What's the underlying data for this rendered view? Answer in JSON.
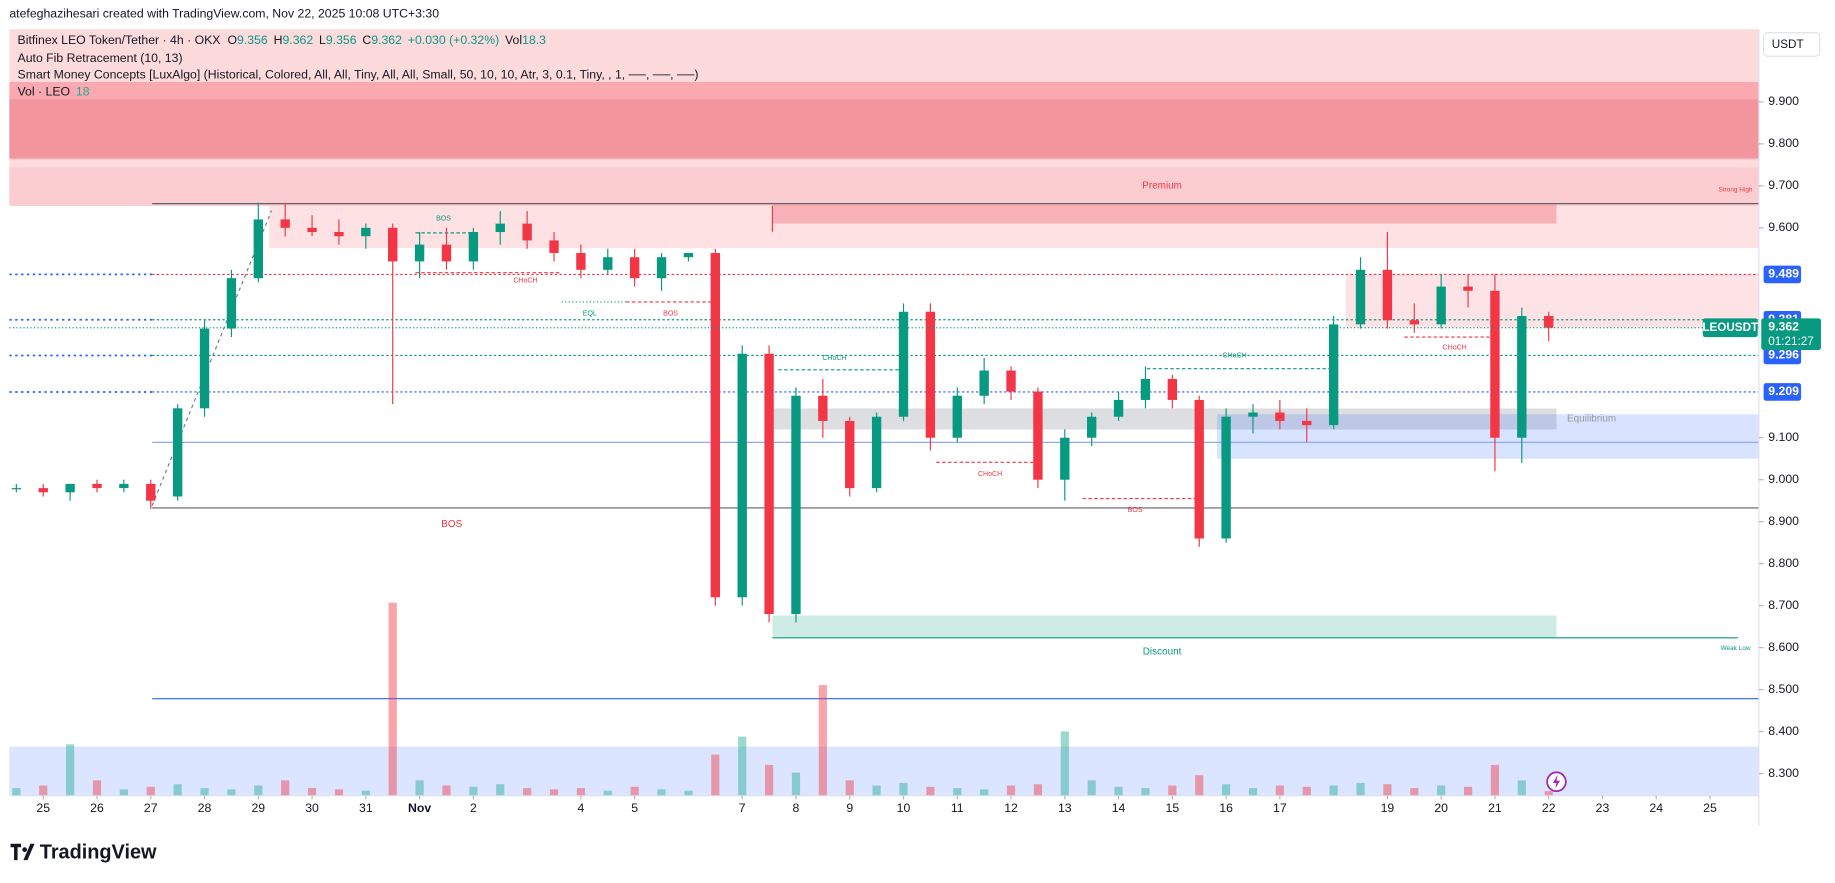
{
  "chart_data": {
    "type": "candlestick",
    "watermark": "atefeghazihesari created with TradingView.com, Nov 22, 2025 10:08 UTC+3:30",
    "legend": {
      "title": "Bitfinex LEO Token/Tether · 4h · OKX",
      "ohlc": [
        {
          "key": "O",
          "value": 9.356
        },
        {
          "key": "H",
          "value": 9.362
        },
        {
          "key": "L",
          "value": 9.356
        },
        {
          "key": "C",
          "value": 9.362
        }
      ],
      "change": "+0.030 (+0.32%)",
      "volume_key": "Vol",
      "volume": 18.3
    },
    "indicators": [
      "Auto Fib Retracement (10, 13)",
      "Smart Money Concepts [LuxAlgo] (Historical, Colored, All, All, Tiny, All, All, Small, 50, 10, 10, Atr, 3, 0.1, Tiny, , 1, ──, ──, ──)"
    ],
    "volume_legend": {
      "label": "Vol · LEO",
      "value": 18
    },
    "currency": "USDT",
    "brand": "TradingView",
    "up_color": "#089981",
    "down_color": "#f23645",
    "ylim": [
      8.247,
      10.073
    ],
    "yticks": [
      {
        "value": 9.9,
        "label": "9.900"
      },
      {
        "value": 9.8,
        "label": "9.800"
      },
      {
        "value": 9.7,
        "label": "9.700"
      },
      {
        "value": 9.6,
        "label": "9.600"
      },
      {
        "value": 9.1,
        "label": "9.100"
      },
      {
        "value": 9.0,
        "label": "9.000"
      },
      {
        "value": 8.9,
        "label": "8.900"
      },
      {
        "value": 8.8,
        "label": "8.800"
      },
      {
        "value": 8.7,
        "label": "8.700"
      },
      {
        "value": 8.6,
        "label": "8.600"
      },
      {
        "value": 8.5,
        "label": "8.500"
      },
      {
        "value": 8.4,
        "label": "8.400"
      },
      {
        "value": 8.3,
        "label": "8.300"
      }
    ],
    "xlim": [
      -0.63,
      31.91
    ],
    "xticks": [
      {
        "value": 0,
        "label": "25"
      },
      {
        "value": 1,
        "label": "26"
      },
      {
        "value": 2,
        "label": "27"
      },
      {
        "value": 3,
        "label": "28"
      },
      {
        "value": 4,
        "label": "29"
      },
      {
        "value": 5,
        "label": "30"
      },
      {
        "value": 6,
        "label": "31"
      },
      {
        "value": 7,
        "label": "Nov"
      },
      {
        "value": 8,
        "label": "2"
      },
      {
        "value": 10,
        "label": "4"
      },
      {
        "value": 11,
        "label": "5"
      },
      {
        "value": 13,
        "label": "7"
      },
      {
        "value": 14,
        "label": "8"
      },
      {
        "value": 15,
        "label": "9"
      },
      {
        "value": 16,
        "label": "10"
      },
      {
        "value": 17,
        "label": "11"
      },
      {
        "value": 18,
        "label": "12"
      },
      {
        "value": 19,
        "label": "13"
      },
      {
        "value": 20,
        "label": "14"
      },
      {
        "value": 21,
        "label": "15"
      },
      {
        "value": 22,
        "label": "16"
      },
      {
        "value": 23,
        "label": "17"
      },
      {
        "value": 25,
        "label": "19"
      },
      {
        "value": 26,
        "label": "20"
      },
      {
        "value": 27,
        "label": "21"
      },
      {
        "value": 28,
        "label": "22"
      },
      {
        "value": 29,
        "label": "23"
      },
      {
        "value": 30,
        "label": "24"
      },
      {
        "value": 31,
        "label": "25"
      }
    ],
    "x": [
      -0.5,
      0,
      0.5,
      1,
      1.5,
      2,
      2.5,
      3,
      3.5,
      4,
      4.5,
      5,
      5.5,
      6,
      6.5,
      7,
      7.5,
      8,
      8.5,
      9,
      9.5,
      10,
      10.5,
      11,
      11.5,
      12,
      12.5,
      13,
      13.5,
      14,
      14.5,
      15,
      15.5,
      16,
      16.5,
      17,
      17.5,
      18,
      18.5,
      19,
      19.5,
      20,
      20.5,
      21,
      21.5,
      22,
      22.5,
      23,
      23.5,
      24,
      24.5,
      25,
      25.5,
      26,
      26.5,
      27,
      27.5,
      28
    ],
    "ohlc": [
      [
        8.98,
        8.99,
        8.97,
        8.98
      ],
      [
        8.98,
        8.99,
        8.96,
        8.97
      ],
      [
        8.97,
        8.99,
        8.95,
        8.99
      ],
      [
        8.99,
        9.0,
        8.97,
        8.98
      ],
      [
        8.98,
        9.0,
        8.97,
        8.99
      ],
      [
        8.99,
        9.0,
        8.93,
        8.95
      ],
      [
        8.96,
        9.18,
        8.95,
        9.17
      ],
      [
        9.17,
        9.38,
        9.15,
        9.36
      ],
      [
        9.36,
        9.5,
        9.34,
        9.48
      ],
      [
        9.48,
        9.66,
        9.47,
        9.62
      ],
      [
        9.62,
        9.66,
        9.58,
        9.6
      ],
      [
        9.6,
        9.63,
        9.58,
        9.59
      ],
      [
        9.59,
        9.62,
        9.56,
        9.58
      ],
      [
        9.58,
        9.61,
        9.55,
        9.6
      ],
      [
        9.6,
        9.61,
        9.18,
        9.52
      ],
      [
        9.52,
        9.59,
        9.48,
        9.56
      ],
      [
        9.56,
        9.6,
        9.5,
        9.52
      ],
      [
        9.52,
        9.6,
        9.5,
        9.59
      ],
      [
        9.59,
        9.64,
        9.56,
        9.61
      ],
      [
        9.61,
        9.64,
        9.55,
        9.57
      ],
      [
        9.57,
        9.59,
        9.52,
        9.54
      ],
      [
        9.54,
        9.56,
        9.48,
        9.5
      ],
      [
        9.5,
        9.55,
        9.49,
        9.53
      ],
      [
        9.53,
        9.55,
        9.46,
        9.48
      ],
      [
        9.48,
        9.54,
        9.45,
        9.53
      ],
      [
        9.53,
        9.54,
        9.52,
        9.54
      ],
      [
        9.54,
        9.55,
        8.7,
        8.72
      ],
      [
        8.72,
        9.32,
        8.7,
        9.3
      ],
      [
        9.3,
        9.32,
        8.66,
        8.68
      ],
      [
        8.68,
        9.22,
        8.66,
        9.2
      ],
      [
        9.2,
        9.24,
        9.1,
        9.14
      ],
      [
        9.14,
        9.15,
        8.96,
        8.98
      ],
      [
        8.98,
        9.16,
        8.97,
        9.15
      ],
      [
        9.15,
        9.42,
        9.14,
        9.4
      ],
      [
        9.4,
        9.42,
        9.07,
        9.1
      ],
      [
        9.1,
        9.22,
        9.09,
        9.2
      ],
      [
        9.2,
        9.29,
        9.18,
        9.26
      ],
      [
        9.26,
        9.27,
        9.19,
        9.21
      ],
      [
        9.21,
        9.22,
        8.98,
        9.0
      ],
      [
        9.0,
        9.12,
        8.95,
        9.1
      ],
      [
        9.1,
        9.16,
        9.08,
        9.15
      ],
      [
        9.15,
        9.21,
        9.14,
        9.19
      ],
      [
        9.19,
        9.27,
        9.17,
        9.24
      ],
      [
        9.24,
        9.25,
        9.17,
        9.19
      ],
      [
        9.19,
        9.2,
        8.84,
        8.86
      ],
      [
        8.86,
        9.17,
        8.85,
        9.15
      ],
      [
        9.15,
        9.18,
        9.11,
        9.16
      ],
      [
        9.16,
        9.19,
        9.12,
        9.14
      ],
      [
        9.14,
        9.17,
        9.09,
        9.13
      ],
      [
        9.13,
        9.39,
        9.12,
        9.37
      ],
      [
        9.37,
        9.53,
        9.36,
        9.5
      ],
      [
        9.5,
        9.59,
        9.36,
        9.38
      ],
      [
        9.38,
        9.42,
        9.35,
        9.37
      ],
      [
        9.37,
        9.49,
        9.36,
        9.46
      ],
      [
        9.46,
        9.49,
        9.41,
        9.45
      ],
      [
        9.45,
        9.49,
        9.02,
        9.1
      ],
      [
        9.1,
        9.41,
        9.04,
        9.39
      ],
      [
        9.39,
        9.4,
        9.33,
        9.362
      ]
    ],
    "volume": [
      30,
      40,
      200,
      60,
      25,
      35,
      45,
      30,
      25,
      40,
      60,
      30,
      25,
      20,
      750,
      60,
      40,
      35,
      45,
      30,
      25,
      30,
      20,
      35,
      25,
      20,
      160,
      230,
      120,
      90,
      430,
      60,
      40,
      50,
      35,
      30,
      25,
      40,
      45,
      250,
      60,
      35,
      30,
      40,
      80,
      45,
      30,
      40,
      35,
      40,
      50,
      45,
      30,
      40,
      35,
      120,
      60,
      18.3
    ],
    "volume_ylim": [
      0,
      900
    ],
    "price_levels": [
      {
        "value": 9.489,
        "color": "#2962ff"
      },
      {
        "value": 9.381,
        "color": "#2962ff"
      },
      {
        "value": 9.296,
        "color": "#2962ff"
      },
      {
        "value": 9.209,
        "color": "#2962ff"
      }
    ],
    "last_price": {
      "symbol": "LEOUSDT",
      "value": 9.362,
      "countdown": "01:21:27",
      "color": "#089981"
    },
    "annotations": [
      {
        "text": "BOS",
        "color": "#089981"
      },
      {
        "text": "CHoCH",
        "color": "#f23645"
      },
      {
        "text": "EQL",
        "color": "#089981"
      },
      {
        "text": "BOS",
        "color": "#f23645"
      },
      {
        "text": "CHoCH",
        "color": "#089981"
      },
      {
        "text": "CHoCH",
        "color": "#089981"
      },
      {
        "text": "CHoCH",
        "color": "#f23645"
      },
      {
        "text": "BOS",
        "color": "#f23645"
      },
      {
        "text": "CHoCH",
        "color": "#f23645"
      },
      {
        "text": "BOS",
        "color": "#f23645"
      },
      {
        "text": "Premium",
        "color": "#f23645"
      },
      {
        "text": "Discount",
        "color": "#089981"
      },
      {
        "text": "Equilibrium",
        "color": "#9598a1"
      },
      {
        "text": "Strong High",
        "color": "#f23645"
      },
      {
        "text": "Weak Low",
        "color": "#089981"
      }
    ]
  }
}
